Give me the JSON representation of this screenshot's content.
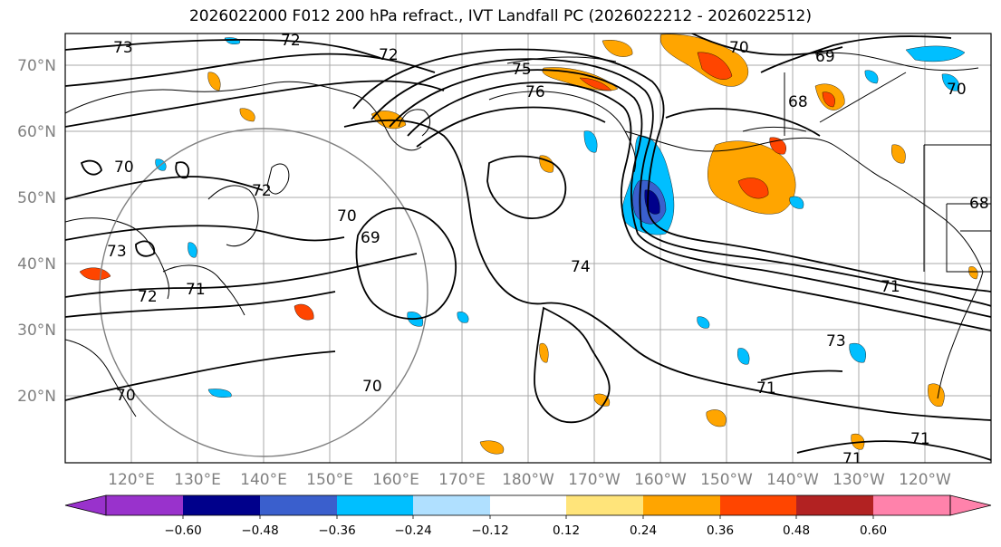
{
  "title": "2026022000 F012 200 hPa refract., IVT Landfall PC (2026022212 - 2026022512)",
  "map": {
    "lat_labels": [
      "70°N",
      "60°N",
      "50°N",
      "40°N",
      "30°N",
      "20°N"
    ],
    "lon_labels": [
      "120°E",
      "130°E",
      "140°E",
      "150°E",
      "160°E",
      "170°E",
      "180°W",
      "170°W",
      "160°W",
      "150°W",
      "140°W",
      "130°W",
      "120°W"
    ],
    "contour_labels": [
      "73",
      "72",
      "72",
      "75",
      "76",
      "70",
      "69",
      "68",
      "70",
      "72",
      "70",
      "69",
      "73",
      "72",
      "71",
      "70",
      "70",
      "74",
      "71",
      "73",
      "71",
      "70",
      "71",
      "71",
      "68"
    ]
  },
  "colorbar": {
    "ticks": [
      "−0.60",
      "−0.48",
      "−0.36",
      "−0.24",
      "−0.12",
      "0.12",
      "0.24",
      "0.36",
      "0.48",
      "0.60"
    ],
    "colors": [
      "#9932cc",
      "#00008b",
      "#3a5fcd",
      "#00bfff",
      "#b0e0ff",
      "#ffffff",
      "#ffe47a",
      "#ffa500",
      "#ff4500",
      "#b22222",
      "#ff82ab"
    ]
  }
}
